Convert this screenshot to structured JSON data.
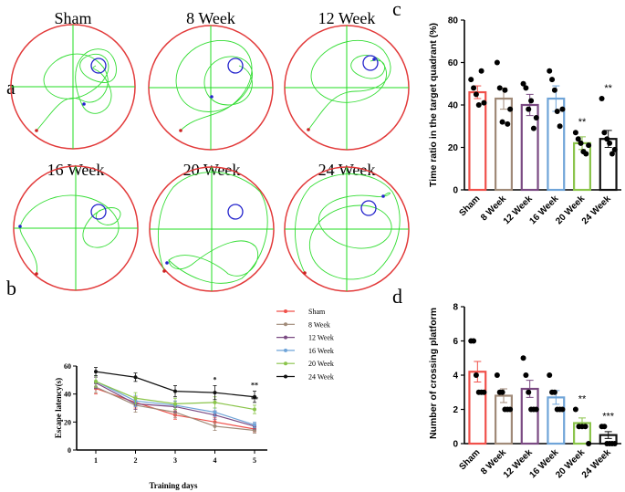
{
  "panel_labels": {
    "a": "a",
    "b": "b",
    "c": "c",
    "d": "d"
  },
  "panel_a": {
    "pools": [
      {
        "title": "Sham",
        "path_color": "#22dd22",
        "platform_color": "#2222cc",
        "start_color": "#cc2222"
      },
      {
        "title": "8 Week",
        "path_color": "#22dd22",
        "platform_color": "#2222cc",
        "start_color": "#cc2222"
      },
      {
        "title": "12 Week",
        "path_color": "#22dd22",
        "platform_color": "#2222cc",
        "start_color": "#cc2222"
      },
      {
        "title": "16 Week",
        "path_color": "#22dd22",
        "platform_color": "#2222cc",
        "start_color": "#cc2222"
      },
      {
        "title": "20 Week",
        "path_color": "#22dd22",
        "platform_color": "#2222cc",
        "start_color": "#cc2222"
      },
      {
        "title": "24 Week",
        "path_color": "#22dd22",
        "platform_color": "#2222cc",
        "start_color": "#cc2222"
      }
    ],
    "pool_border_color": "#e23a3a"
  },
  "chart_data": [
    {
      "id": "b",
      "type": "line",
      "title": "",
      "xlabel": "Training days",
      "ylabel": "Escape latency(s)",
      "x": [
        1,
        2,
        3,
        4,
        5
      ],
      "ylim": [
        0,
        60
      ],
      "yticks": [
        0,
        20,
        40,
        60
      ],
      "series": [
        {
          "name": "Sham",
          "color": "#f0504a",
          "values": [
            44,
            34,
            25,
            20,
            15
          ],
          "errors": [
            4,
            4,
            3,
            3,
            2
          ]
        },
        {
          "name": "8 Week",
          "color": "#a08a78",
          "values": [
            45,
            32,
            27,
            17,
            14
          ],
          "errors": [
            4,
            5,
            4,
            3,
            2
          ]
        },
        {
          "name": "12 Week",
          "color": "#7a4a82",
          "values": [
            48,
            33,
            31,
            25,
            17
          ],
          "errors": [
            4,
            4,
            4,
            3,
            2
          ]
        },
        {
          "name": "16 Week",
          "color": "#6fa4d8",
          "values": [
            49,
            35,
            32,
            27,
            18
          ],
          "errors": [
            4,
            4,
            3,
            3,
            2
          ]
        },
        {
          "name": "20 Week",
          "color": "#8ac44a",
          "values": [
            49,
            37,
            33,
            34,
            29
          ],
          "errors": [
            4,
            4,
            4,
            4,
            3
          ]
        },
        {
          "name": "24 Week",
          "color": "#111111",
          "values": [
            56,
            52,
            42,
            41,
            38
          ],
          "errors": [
            3,
            3,
            4,
            5,
            4
          ]
        }
      ],
      "annotations": [
        {
          "text": "*",
          "x": 4,
          "near": "24 Week"
        },
        {
          "text": "**",
          "x": 5,
          "near": "24 Week"
        },
        {
          "text": "**",
          "x": 5,
          "near": "20 Week"
        }
      ],
      "legend": "right"
    },
    {
      "id": "c",
      "type": "bar",
      "title": "",
      "xlabel": "",
      "ylabel": "Time ratio in the target quadrant (%)",
      "categories": [
        "Sham",
        "8 Week",
        "12 Week",
        "16 Week",
        "20 Week",
        "24 Week"
      ],
      "values": [
        46,
        43,
        40,
        43,
        22,
        24
      ],
      "errors": [
        3,
        5,
        5,
        6,
        3,
        4
      ],
      "colors": [
        "#f0504a",
        "#a08a78",
        "#7a4a82",
        "#6fa4d8",
        "#8ac44a",
        "#111111"
      ],
      "points": [
        [
          52,
          48,
          45,
          40,
          56,
          41
        ],
        [
          60,
          48,
          32,
          47,
          31,
          38
        ],
        [
          50,
          48,
          38,
          42,
          29,
          34
        ],
        [
          56,
          52,
          47,
          37,
          30,
          38
        ],
        [
          27,
          24,
          22,
          18,
          17,
          21
        ],
        [
          43,
          27,
          24,
          22,
          17,
          19
        ]
      ],
      "significance": [
        "",
        "",
        "",
        "",
        "**",
        "**"
      ],
      "ylim": [
        0,
        80
      ],
      "yticks": [
        0,
        20,
        40,
        60,
        80
      ]
    },
    {
      "id": "d",
      "type": "bar",
      "title": "",
      "xlabel": "",
      "ylabel": "Number of crossing platform",
      "categories": [
        "Sham",
        "8 Week",
        "12 Week",
        "16 Week",
        "20 Week",
        "24 Week"
      ],
      "values": [
        4.2,
        2.8,
        3.2,
        2.7,
        1.2,
        0.5
      ],
      "errors": [
        0.6,
        0.4,
        0.5,
        0.4,
        0.3,
        0.2
      ],
      "colors": [
        "#f0504a",
        "#a08a78",
        "#7a4a82",
        "#6fa4d8",
        "#8ac44a",
        "#111111"
      ],
      "points": [
        [
          6,
          6,
          4,
          3,
          3,
          3
        ],
        [
          4,
          3,
          3,
          2,
          2,
          2
        ],
        [
          5,
          4,
          3,
          2,
          2,
          2
        ],
        [
          4,
          3,
          3,
          2,
          2,
          2
        ],
        [
          2,
          1,
          1,
          1,
          0
        ],
        [
          1,
          1,
          0,
          0,
          0,
          0
        ]
      ],
      "significance": [
        "",
        "",
        "",
        "",
        "**",
        "***"
      ],
      "ylim": [
        0,
        8
      ],
      "yticks": [
        0,
        2,
        4,
        6,
        8
      ]
    }
  ]
}
